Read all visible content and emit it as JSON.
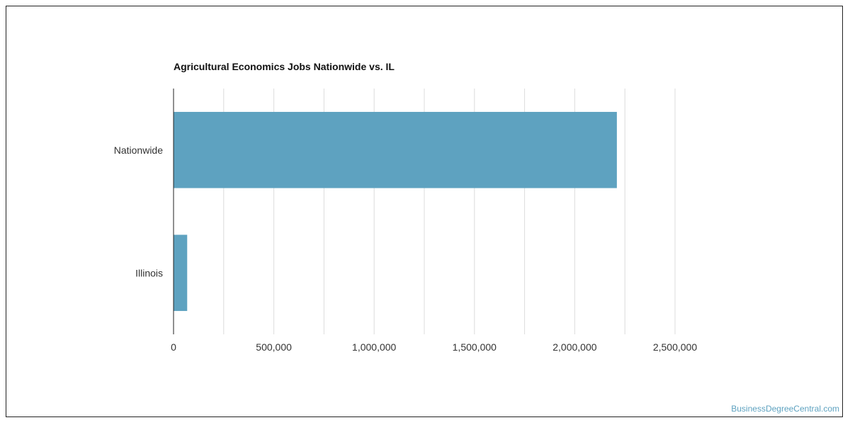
{
  "chart_data": {
    "type": "bar",
    "orientation": "horizontal",
    "title": "Agricultural Economics Jobs Nationwide vs. IL",
    "categories": [
      "Nationwide",
      "Illinois"
    ],
    "values": [
      2210000,
      68000
    ],
    "xlim": [
      0,
      2500000
    ],
    "xticks": [
      0,
      500000,
      1000000,
      1500000,
      2000000,
      2500000
    ],
    "xtick_labels": [
      "0",
      "500,000",
      "1,000,000",
      "1,500,000",
      "2,000,000",
      "2,500,000"
    ],
    "grid": true,
    "bar_color": "#5ea2c0"
  },
  "footer": {
    "credit": "BusinessDegreeCentral.com",
    "credit_color": "#5ea2c0"
  }
}
